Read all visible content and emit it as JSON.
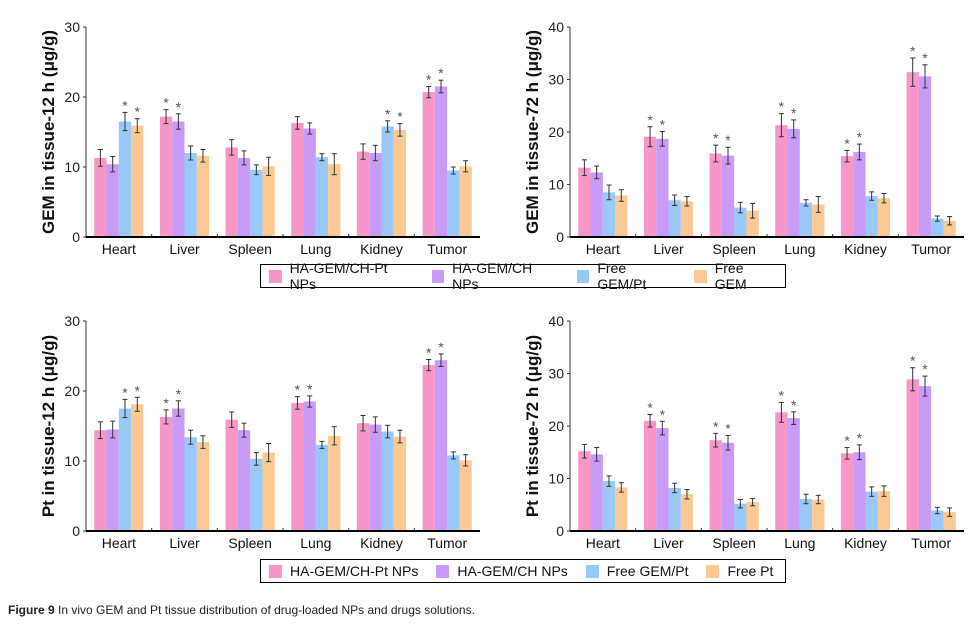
{
  "colors": {
    "HA-GEM/CH-Pt NPs": "#f797c8",
    "HA-GEM/CH NPs": "#c89bf7",
    "Free GEM/Pt": "#99c9f9",
    "Free GEM": "#fbc994",
    "Free Pt": "#fbc994"
  },
  "legends": [
    {
      "items": [
        "HA-GEM/CH-Pt NPs",
        "HA-GEM/CH NPs",
        "Free GEM/Pt",
        "Free GEM"
      ]
    },
    {
      "items": [
        "HA-GEM/CH-Pt NPs",
        "HA-GEM/CH NPs",
        "Free GEM/Pt",
        "Free Pt"
      ]
    }
  ],
  "caption": {
    "label": "Figure 9",
    "text": " In vivo GEM and Pt tissue distribution of drug-loaded NPs and drugs solutions."
  },
  "chart_data": [
    {
      "type": "bar",
      "title": "",
      "ylabel": "GEM in tissue-12 h (μg/g)",
      "xlabel": "",
      "ylim": [
        0,
        30
      ],
      "yticks": [
        0,
        10,
        20,
        30
      ],
      "categories": [
        "Heart",
        "Liver",
        "Spleen",
        "Lung",
        "Kidney",
        "Tumor"
      ],
      "series": [
        {
          "name": "HA-GEM/CH-Pt NPs",
          "values": [
            11.3,
            17.2,
            12.8,
            16.3,
            12.2,
            20.7
          ],
          "errors": [
            1.2,
            1.0,
            1.1,
            0.9,
            1.1,
            0.8
          ],
          "significant": [
            false,
            true,
            false,
            false,
            false,
            true
          ]
        },
        {
          "name": "HA-GEM/CH NPs",
          "values": [
            10.4,
            16.5,
            11.3,
            15.5,
            12.0,
            21.5
          ],
          "errors": [
            1.1,
            1.1,
            1.0,
            0.8,
            1.1,
            0.9
          ],
          "significant": [
            false,
            true,
            false,
            false,
            false,
            true
          ]
        },
        {
          "name": "Free GEM/Pt",
          "values": [
            16.5,
            12.0,
            9.6,
            11.4,
            15.8,
            9.5
          ],
          "errors": [
            1.3,
            1.0,
            0.7,
            0.5,
            0.8,
            0.5
          ],
          "significant": [
            true,
            false,
            false,
            false,
            true,
            false
          ]
        },
        {
          "name": "Free GEM",
          "values": [
            15.9,
            11.6,
            10.1,
            10.4,
            15.3,
            10.1
          ],
          "errors": [
            1.0,
            0.9,
            1.3,
            1.5,
            0.9,
            0.8
          ],
          "significant": [
            true,
            false,
            false,
            false,
            true,
            false
          ]
        }
      ]
    },
    {
      "type": "bar",
      "title": "",
      "ylabel": "GEM in tissue-72 h (μg/g)",
      "xlabel": "",
      "ylim": [
        0,
        40
      ],
      "yticks": [
        0,
        10,
        20,
        30,
        40
      ],
      "categories": [
        "Heart",
        "Liver",
        "Spleen",
        "Lung",
        "Kidney",
        "Tumor"
      ],
      "series": [
        {
          "name": "HA-GEM/CH-Pt NPs",
          "values": [
            13.2,
            19.1,
            15.9,
            21.3,
            15.4,
            31.4
          ],
          "errors": [
            1.5,
            1.9,
            1.6,
            2.2,
            1.1,
            2.7
          ],
          "significant": [
            false,
            true,
            true,
            true,
            true,
            true
          ]
        },
        {
          "name": "HA-GEM/CH NPs",
          "values": [
            12.3,
            18.7,
            15.5,
            20.6,
            16.2,
            30.6
          ],
          "errors": [
            1.2,
            1.4,
            1.6,
            1.7,
            1.5,
            2.2
          ],
          "significant": [
            false,
            true,
            true,
            true,
            true,
            true
          ]
        },
        {
          "name": "Free GEM/Pt",
          "values": [
            8.5,
            7.0,
            5.6,
            6.5,
            7.8,
            3.5
          ],
          "errors": [
            1.4,
            1.0,
            1.0,
            0.6,
            0.8,
            0.5
          ],
          "significant": [
            false,
            false,
            false,
            false,
            false,
            false
          ]
        },
        {
          "name": "Free GEM",
          "values": [
            7.9,
            6.8,
            5.0,
            6.2,
            7.4,
            3.1
          ],
          "errors": [
            1.1,
            0.9,
            1.4,
            1.5,
            0.9,
            0.8
          ],
          "significant": [
            false,
            false,
            false,
            false,
            false,
            false
          ]
        }
      ]
    },
    {
      "type": "bar",
      "title": "",
      "ylabel": "Pt in tissue-12 h (μg/g)",
      "xlabel": "",
      "ylim": [
        0,
        30
      ],
      "yticks": [
        0,
        10,
        20,
        30
      ],
      "categories": [
        "Heart",
        "Liver",
        "Spleen",
        "Lung",
        "Kidney",
        "Tumor"
      ],
      "series": [
        {
          "name": "HA-GEM/CH-Pt NPs",
          "values": [
            14.4,
            16.3,
            15.9,
            18.3,
            15.4,
            23.7
          ],
          "errors": [
            1.2,
            1.0,
            1.1,
            0.9,
            1.1,
            0.8
          ],
          "significant": [
            false,
            true,
            false,
            true,
            false,
            true
          ]
        },
        {
          "name": "HA-GEM/CH NPs",
          "values": [
            14.5,
            17.5,
            14.4,
            18.5,
            15.2,
            24.4
          ],
          "errors": [
            1.2,
            1.1,
            1.0,
            0.8,
            1.1,
            0.9
          ],
          "significant": [
            false,
            true,
            false,
            true,
            false,
            true
          ]
        },
        {
          "name": "Free GEM/Pt",
          "values": [
            17.5,
            13.4,
            10.3,
            12.3,
            14.2,
            10.8
          ],
          "errors": [
            1.3,
            1.0,
            0.9,
            0.5,
            0.9,
            0.5
          ],
          "significant": [
            true,
            false,
            false,
            false,
            false,
            false
          ]
        },
        {
          "name": "Free Pt",
          "values": [
            18.1,
            12.7,
            11.2,
            13.6,
            13.5,
            10.1
          ],
          "errors": [
            1.0,
            0.9,
            1.3,
            1.3,
            0.9,
            0.8
          ],
          "significant": [
            true,
            false,
            false,
            false,
            false,
            false
          ]
        }
      ]
    },
    {
      "type": "bar",
      "title": "",
      "ylabel": "Pt in tissue-72 h (μg/g)",
      "xlabel": "",
      "ylim": [
        0,
        40
      ],
      "yticks": [
        0,
        10,
        20,
        30,
        40
      ],
      "categories": [
        "Heart",
        "Liver",
        "Spleen",
        "Lung",
        "Kidney",
        "Tumor"
      ],
      "series": [
        {
          "name": "HA-GEM/CH-Pt NPs",
          "values": [
            15.2,
            21.0,
            17.3,
            22.6,
            14.8,
            28.9
          ],
          "errors": [
            1.3,
            1.2,
            1.3,
            1.9,
            1.1,
            2.2
          ],
          "significant": [
            false,
            true,
            true,
            true,
            true,
            true
          ]
        },
        {
          "name": "HA-GEM/CH NPs",
          "values": [
            14.6,
            19.6,
            16.8,
            21.5,
            15.0,
            27.6
          ],
          "errors": [
            1.3,
            1.3,
            1.4,
            1.2,
            1.4,
            1.9
          ],
          "significant": [
            false,
            true,
            true,
            true,
            true,
            true
          ]
        },
        {
          "name": "Free GEM/Pt",
          "values": [
            9.5,
            8.2,
            5.2,
            6.1,
            7.5,
            3.9
          ],
          "errors": [
            1.0,
            0.9,
            0.8,
            0.9,
            0.9,
            0.6
          ],
          "significant": [
            false,
            false,
            false,
            false,
            false,
            false
          ]
        },
        {
          "name": "Free Pt",
          "values": [
            8.3,
            7.0,
            5.5,
            6.0,
            7.6,
            3.6
          ],
          "errors": [
            0.9,
            0.9,
            0.7,
            0.8,
            1.0,
            0.8
          ],
          "significant": [
            false,
            false,
            false,
            false,
            false,
            false
          ]
        }
      ]
    }
  ]
}
